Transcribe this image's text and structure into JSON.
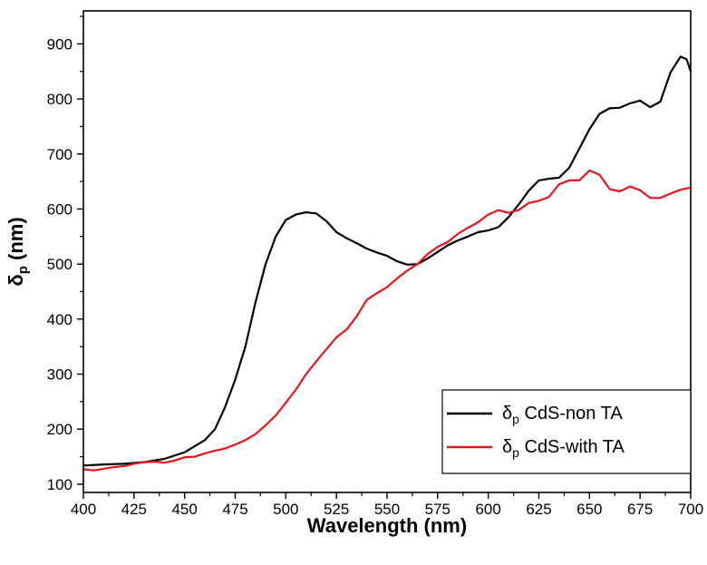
{
  "chart_data": {
    "type": "line",
    "title": "",
    "xlabel": "Wavelength (nm)",
    "ylabel": {
      "main": "δ",
      "sub": "p",
      "rest": " (nm)"
    },
    "xlim": [
      400,
      700
    ],
    "ylim": [
      85,
      960
    ],
    "xticks": [
      400,
      425,
      450,
      475,
      500,
      525,
      550,
      575,
      600,
      625,
      650,
      675,
      700
    ],
    "yticks": [
      100,
      200,
      300,
      400,
      500,
      600,
      700,
      800,
      900
    ],
    "grid": false,
    "legend_position": "bottom-right",
    "series": [
      {
        "legend": {
          "main": "δ",
          "sub": "p",
          "rest": " CdS-non TA"
        },
        "color": "#000000",
        "points": [
          [
            400,
            134
          ],
          [
            410,
            136
          ],
          [
            420,
            137
          ],
          [
            430,
            140
          ],
          [
            440,
            146
          ],
          [
            450,
            158
          ],
          [
            460,
            180
          ],
          [
            465,
            200
          ],
          [
            470,
            240
          ],
          [
            475,
            290
          ],
          [
            480,
            350
          ],
          [
            485,
            430
          ],
          [
            490,
            500
          ],
          [
            495,
            550
          ],
          [
            500,
            580
          ],
          [
            505,
            590
          ],
          [
            510,
            594
          ],
          [
            515,
            592
          ],
          [
            520,
            578
          ],
          [
            525,
            558
          ],
          [
            530,
            547
          ],
          [
            535,
            538
          ],
          [
            540,
            528
          ],
          [
            545,
            521
          ],
          [
            550,
            515
          ],
          [
            555,
            505
          ],
          [
            560,
            499
          ],
          [
            565,
            500
          ],
          [
            570,
            510
          ],
          [
            575,
            522
          ],
          [
            580,
            534
          ],
          [
            585,
            543
          ],
          [
            590,
            550
          ],
          [
            595,
            558
          ],
          [
            600,
            561
          ],
          [
            605,
            567
          ],
          [
            610,
            585
          ],
          [
            615,
            608
          ],
          [
            620,
            633
          ],
          [
            625,
            652
          ],
          [
            630,
            655
          ],
          [
            635,
            657
          ],
          [
            640,
            675
          ],
          [
            645,
            710
          ],
          [
            650,
            745
          ],
          [
            655,
            773
          ],
          [
            660,
            783
          ],
          [
            665,
            784
          ],
          [
            670,
            792
          ],
          [
            675,
            797
          ],
          [
            680,
            785
          ],
          [
            685,
            795
          ],
          [
            690,
            848
          ],
          [
            695,
            877
          ],
          [
            698,
            872
          ],
          [
            700,
            850
          ]
        ]
      },
      {
        "legend": {
          "main": "δ",
          "sub": "p",
          "rest": " CdS-with TA"
        },
        "color": "#e8141c",
        "points": [
          [
            400,
            127
          ],
          [
            405,
            125
          ],
          [
            410,
            128
          ],
          [
            415,
            131
          ],
          [
            420,
            133
          ],
          [
            425,
            137
          ],
          [
            430,
            140
          ],
          [
            435,
            141
          ],
          [
            440,
            139
          ],
          [
            445,
            143
          ],
          [
            450,
            149
          ],
          [
            455,
            150
          ],
          [
            460,
            156
          ],
          [
            465,
            161
          ],
          [
            470,
            165
          ],
          [
            475,
            172
          ],
          [
            480,
            180
          ],
          [
            485,
            191
          ],
          [
            490,
            207
          ],
          [
            495,
            225
          ],
          [
            500,
            248
          ],
          [
            505,
            272
          ],
          [
            510,
            300
          ],
          [
            515,
            323
          ],
          [
            520,
            345
          ],
          [
            525,
            367
          ],
          [
            530,
            381
          ],
          [
            535,
            405
          ],
          [
            540,
            435
          ],
          [
            545,
            447
          ],
          [
            550,
            458
          ],
          [
            555,
            474
          ],
          [
            560,
            488
          ],
          [
            565,
            500
          ],
          [
            570,
            518
          ],
          [
            575,
            531
          ],
          [
            580,
            540
          ],
          [
            585,
            555
          ],
          [
            590,
            566
          ],
          [
            595,
            576
          ],
          [
            600,
            590
          ],
          [
            605,
            598
          ],
          [
            610,
            593
          ],
          [
            615,
            598
          ],
          [
            620,
            611
          ],
          [
            625,
            615
          ],
          [
            630,
            622
          ],
          [
            635,
            645
          ],
          [
            640,
            652
          ],
          [
            645,
            652
          ],
          [
            650,
            670
          ],
          [
            655,
            662
          ],
          [
            660,
            636
          ],
          [
            665,
            632
          ],
          [
            670,
            641
          ],
          [
            675,
            634
          ],
          [
            680,
            620
          ],
          [
            685,
            620
          ],
          [
            690,
            628
          ],
          [
            695,
            635
          ],
          [
            700,
            639
          ]
        ]
      }
    ]
  }
}
